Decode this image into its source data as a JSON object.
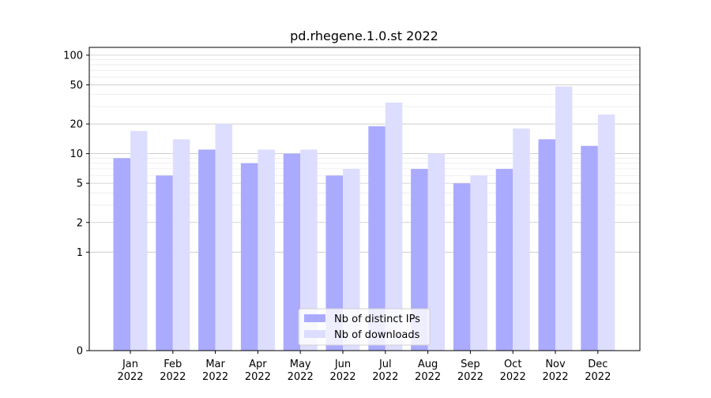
{
  "chart_data": {
    "type": "bar",
    "title": "pd.rhegene.1.0.st 2022",
    "xlabel": "",
    "ylabel": "",
    "yscale": "symlog",
    "ylim": [
      0,
      120
    ],
    "yticks": [
      0,
      1,
      2,
      5,
      10,
      20,
      50,
      100
    ],
    "ytick_labels": [
      "0",
      "1",
      "2",
      "5",
      "10",
      "20",
      "50",
      "100"
    ],
    "grid": true,
    "legend_position": "bottom-center",
    "categories": [
      [
        "Jan",
        "2022"
      ],
      [
        "Feb",
        "2022"
      ],
      [
        "Mar",
        "2022"
      ],
      [
        "Apr",
        "2022"
      ],
      [
        "May",
        "2022"
      ],
      [
        "Jun",
        "2022"
      ],
      [
        "Jul",
        "2022"
      ],
      [
        "Aug",
        "2022"
      ],
      [
        "Sep",
        "2022"
      ],
      [
        "Oct",
        "2022"
      ],
      [
        "Nov",
        "2022"
      ],
      [
        "Dec",
        "2022"
      ]
    ],
    "series": [
      {
        "name": "Nb of distinct IPs",
        "color": "#aaaaff",
        "values": [
          9,
          6,
          11,
          8,
          10,
          6,
          19,
          7,
          5,
          7,
          14,
          12
        ]
      },
      {
        "name": "Nb of downloads",
        "color": "#ddddff",
        "values": [
          17,
          14,
          20,
          11,
          11,
          7,
          33,
          10,
          6,
          18,
          48,
          25
        ]
      }
    ]
  }
}
